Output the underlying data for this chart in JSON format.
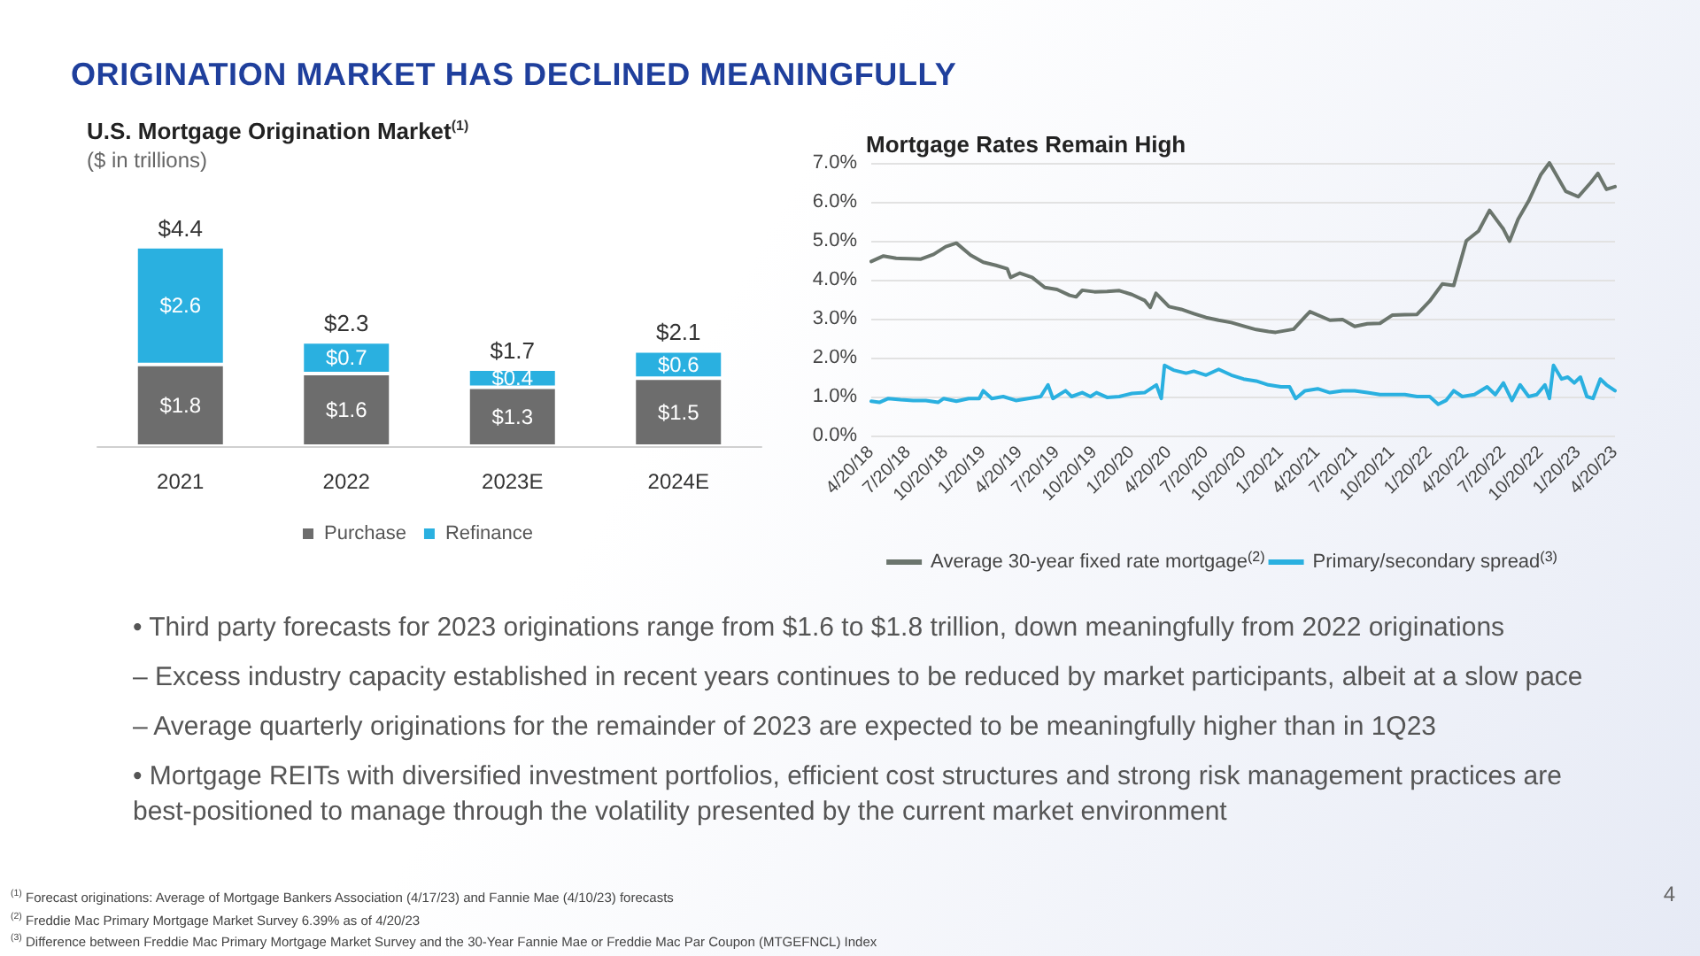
{
  "chart_data": [
    {
      "type": "other",
      "title": "ORIGINATION MARKET HAS DECLINED MEANINGFULLY"
    },
    {
      "type": "bar",
      "title": "U.S. Mortgage Origination Market$^{(1)}$",
      "subtitle": "($ in trillions)",
      "categories": [
        "2021",
        "2022",
        "2023E",
        "2024E"
      ],
      "stacked": true,
      "legend": "bottom",
      "grid": false,
      "series": [
        {
          "name": "Purchase",
          "color": "#6d6d6d",
          "values": [
            1.8,
            1.6,
            1.3,
            1.5
          ],
          "value_labels": [
            "$1.8",
            "$1.6",
            "$1.3",
            "$1.5"
          ]
        },
        {
          "name": "Refinance",
          "color": "#2ab0e0",
          "values": [
            2.6,
            0.7,
            0.4,
            0.6
          ],
          "value_labels": [
            "$2.6",
            "$0.7",
            "$0.4",
            "$0.6"
          ]
        }
      ],
      "totals": [
        "$4.4",
        "$2.3",
        "$1.7",
        "$2.1"
      ]
    },
    {
      "type": "line",
      "title": "Mortgage Rates Remain High",
      "legend": "bottom",
      "grid": "y",
      "marker": "none",
      "line_style": "solid",
      "xlim": [
        "2018-04-20",
        "2023-04-20"
      ],
      "ylim": [
        0,
        7
      ],
      "xticks": [
        {
          "value": "2018-04-20",
          "label": "4/20/18"
        },
        {
          "value": "2018-07-20",
          "label": "7/20/18"
        },
        {
          "value": "2018-10-20",
          "label": "10/20/18"
        },
        {
          "value": "2019-01-20",
          "label": "1/20/19"
        },
        {
          "value": "2019-04-20",
          "label": "4/20/19"
        },
        {
          "value": "2019-07-20",
          "label": "7/20/19"
        },
        {
          "value": "2019-10-20",
          "label": "10/20/19"
        },
        {
          "value": "2020-01-20",
          "label": "1/20/20"
        },
        {
          "value": "2020-04-20",
          "label": "4/20/20"
        },
        {
          "value": "2020-07-20",
          "label": "7/20/20"
        },
        {
          "value": "2020-10-20",
          "label": "10/20/20"
        },
        {
          "value": "2021-01-20",
          "label": "1/20/21"
        },
        {
          "value": "2021-04-20",
          "label": "4/20/21"
        },
        {
          "value": "2021-07-20",
          "label": "7/20/21"
        },
        {
          "value": "2021-10-20",
          "label": "10/20/21"
        },
        {
          "value": "2022-01-20",
          "label": "1/20/22"
        },
        {
          "value": "2022-04-20",
          "label": "4/20/22"
        },
        {
          "value": "2022-07-20",
          "label": "7/20/22"
        },
        {
          "value": "2022-10-20",
          "label": "10/20/22"
        },
        {
          "value": "2023-01-20",
          "label": "1/20/23"
        },
        {
          "value": "2023-04-20",
          "label": "4/20/23"
        }
      ],
      "yticks": [
        {
          "value": 0,
          "label": "0.0%"
        },
        {
          "value": 1,
          "label": "1.0%"
        },
        {
          "value": 2,
          "label": "2.0%"
        },
        {
          "value": 3,
          "label": "3.0%"
        },
        {
          "value": 4,
          "label": "4.0%"
        },
        {
          "value": 5,
          "label": "5.0%"
        },
        {
          "value": 6,
          "label": "6.0%"
        },
        {
          "value": 7,
          "label": "7.0%"
        }
      ],
      "series": [
        {
          "name": "Average 30-year fixed rate mortgage$^{(2)}$",
          "color": "#6b756d",
          "x": [
            "2018-04-20",
            "2018-05-20",
            "2018-06-20",
            "2018-07-20",
            "2018-08-20",
            "2018-09-20",
            "2018-10-20",
            "2018-11-15",
            "2018-12-20",
            "2019-01-20",
            "2019-02-20",
            "2019-03-20",
            "2019-03-28",
            "2019-04-20",
            "2019-05-20",
            "2019-06-20",
            "2019-07-20",
            "2019-08-20",
            "2019-09-05",
            "2019-09-20",
            "2019-10-20",
            "2019-11-20",
            "2019-12-20",
            "2020-01-20",
            "2020-02-20",
            "2020-03-05",
            "2020-03-19",
            "2020-04-20",
            "2020-05-20",
            "2020-06-20",
            "2020-07-20",
            "2020-08-20",
            "2020-09-20",
            "2020-10-20",
            "2020-11-20",
            "2020-12-20",
            "2021-01-07",
            "2021-02-20",
            "2021-03-20",
            "2021-04-01",
            "2021-05-20",
            "2021-06-20",
            "2021-07-20",
            "2021-08-20",
            "2021-09-20",
            "2021-10-20",
            "2021-11-20",
            "2021-12-20",
            "2022-01-20",
            "2022-02-20",
            "2022-03-20",
            "2022-04-20",
            "2022-05-20",
            "2022-06-16",
            "2022-07-20",
            "2022-08-04",
            "2022-08-25",
            "2022-09-20",
            "2022-10-20",
            "2022-11-10",
            "2022-12-20",
            "2023-01-20",
            "2023-02-20",
            "2023-03-09",
            "2023-03-30",
            "2023-04-20"
          ],
          "values": [
            4.47,
            4.61,
            4.55,
            4.54,
            4.53,
            4.65,
            4.85,
            4.94,
            4.63,
            4.45,
            4.37,
            4.28,
            4.06,
            4.17,
            4.06,
            3.8,
            3.75,
            3.6,
            3.56,
            3.73,
            3.69,
            3.7,
            3.72,
            3.62,
            3.47,
            3.29,
            3.65,
            3.31,
            3.24,
            3.13,
            3.03,
            2.96,
            2.9,
            2.81,
            2.72,
            2.67,
            2.65,
            2.73,
            3.05,
            3.18,
            2.96,
            2.98,
            2.8,
            2.87,
            2.88,
            3.09,
            3.1,
            3.11,
            3.45,
            3.89,
            3.85,
            5.0,
            5.25,
            5.78,
            5.3,
            4.99,
            5.55,
            6.02,
            6.7,
            7.0,
            6.27,
            6.13,
            6.5,
            6.73,
            6.32,
            6.39
          ]
        },
        {
          "name": "Primary/secondary spread$^{(3)}$",
          "color": "#2ab0e0",
          "x": [
            "2018-04-20",
            "2018-05-10",
            "2018-06-01",
            "2018-07-01",
            "2018-08-01",
            "2018-09-01",
            "2018-10-01",
            "2018-10-15",
            "2018-11-15",
            "2018-12-15",
            "2019-01-10",
            "2019-01-20",
            "2019-02-10",
            "2019-03-10",
            "2019-04-10",
            "2019-05-10",
            "2019-06-10",
            "2019-06-28",
            "2019-07-10",
            "2019-08-10",
            "2019-08-25",
            "2019-09-20",
            "2019-10-10",
            "2019-10-25",
            "2019-11-20",
            "2019-12-20",
            "2020-01-20",
            "2020-02-20",
            "2020-03-20",
            "2020-04-01",
            "2020-04-09",
            "2020-05-01",
            "2020-06-01",
            "2020-06-20",
            "2020-07-20",
            "2020-08-20",
            "2020-09-20",
            "2020-10-20",
            "2020-11-20",
            "2020-12-20",
            "2021-01-20",
            "2021-02-10",
            "2021-02-25",
            "2021-03-20",
            "2021-04-20",
            "2021-05-20",
            "2021-06-20",
            "2021-07-20",
            "2021-08-20",
            "2021-09-20",
            "2021-10-20",
            "2021-11-20",
            "2021-12-20",
            "2022-01-20",
            "2022-02-10",
            "2022-03-01",
            "2022-03-20",
            "2022-04-10",
            "2022-05-10",
            "2022-06-10",
            "2022-06-30",
            "2022-07-20",
            "2022-08-10",
            "2022-08-30",
            "2022-09-20",
            "2022-10-10",
            "2022-10-30",
            "2022-11-10",
            "2022-11-20",
            "2022-12-10",
            "2022-12-25",
            "2023-01-10",
            "2023-01-25",
            "2023-02-10",
            "2023-02-25",
            "2023-03-15",
            "2023-03-30",
            "2023-04-20"
          ],
          "values": [
            0.88,
            0.85,
            0.95,
            0.92,
            0.9,
            0.9,
            0.85,
            0.95,
            0.88,
            0.95,
            0.95,
            1.15,
            0.95,
            1.0,
            0.9,
            0.95,
            1.0,
            1.3,
            0.95,
            1.15,
            1.0,
            1.1,
            1.0,
            1.1,
            0.98,
            1.0,
            1.08,
            1.1,
            1.3,
            0.95,
            1.8,
            1.68,
            1.6,
            1.65,
            1.55,
            1.7,
            1.55,
            1.45,
            1.4,
            1.3,
            1.25,
            1.25,
            0.95,
            1.15,
            1.2,
            1.1,
            1.15,
            1.15,
            1.1,
            1.05,
            1.05,
            1.05,
            1.0,
            1.0,
            0.8,
            0.9,
            1.15,
            1.0,
            1.05,
            1.25,
            1.05,
            1.35,
            0.9,
            1.3,
            1.0,
            1.05,
            1.3,
            0.95,
            1.8,
            1.45,
            1.5,
            1.35,
            1.5,
            1.0,
            0.95,
            1.45,
            1.3,
            1.15
          ]
        }
      ]
    },
    {
      "type": "other",
      "annotations": [
        "• Third party forecasts for 2023 originations range from $1.6 to $1.8 trillion, down meaningfully from 2022 originations",
        "– Excess industry capacity established in recent years continues to be reduced by market participants, albeit at a slow pace",
        "– Average quarterly originations for the remainder of 2023 are expected to be meaningfully higher than in 1Q23",
        "• Mortgage REITs with diversified investment portfolios, efficient cost structures and strong risk management practices are best-positioned to manage through the volatility presented by the current market environment"
      ]
    },
    {
      "type": "other",
      "annotations": [
        "$^{(1)}$ Forecast originations: Average of Mortgage Bankers Association (4/17/23) and Fannie Mae (4/10/23) forecasts",
        "$^{(2)}$ Freddie Mac Primary Mortgage Market Survey 6.39% as of 4/20/23",
        "$^{(3)}$ Difference between Freddie Mac Primary Mortgage Market Survey and the 30-Year Fannie Mae or Freddie Mac Par Coupon (MTGEFNCL) Index",
        "4"
      ]
    }
  ]
}
